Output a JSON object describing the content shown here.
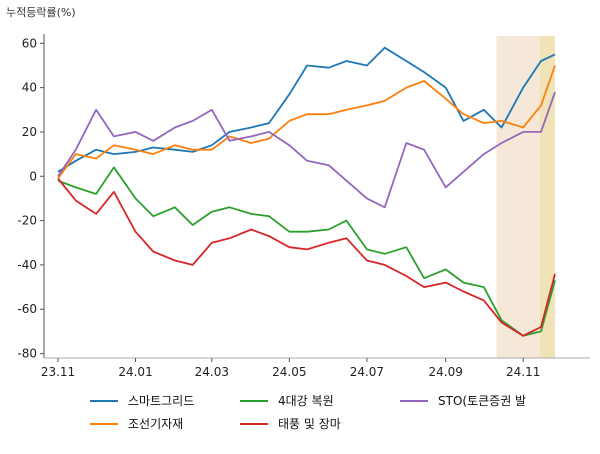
{
  "chart_data": {
    "type": "line",
    "ylabel": "누적등락률(%)",
    "xlabel": "",
    "title": "",
    "ylim": [
      -82,
      66
    ],
    "yticks": [
      60,
      40,
      20,
      0,
      -20,
      -40,
      -60,
      -80
    ],
    "x_ticks": [
      "23.11",
      "24.01",
      "24.03",
      "24.05",
      "24.07",
      "24.09",
      "24.11"
    ],
    "x_range": [
      "2023-11-01",
      "2024-11-26"
    ],
    "grid": false,
    "legend_position": "bottom",
    "highlight_spans": [
      {
        "from": "2024-10-11",
        "to": "2024-11-26",
        "color": "#f5e8d8"
      },
      {
        "from": "2024-11-14",
        "to": "2024-11-26",
        "color": "#f0e3b8"
      }
    ],
    "series": [
      {
        "name": "스마트그리드",
        "color": "#1f77b4",
        "points": [
          [
            "2023-11-01",
            2
          ],
          [
            "2023-11-15",
            7
          ],
          [
            "2023-12-01",
            12
          ],
          [
            "2023-12-15",
            10
          ],
          [
            "2024-01-01",
            11
          ],
          [
            "2024-01-15",
            13
          ],
          [
            "2024-02-01",
            12
          ],
          [
            "2024-02-15",
            11
          ],
          [
            "2024-03-01",
            14
          ],
          [
            "2024-03-15",
            20
          ],
          [
            "2024-04-01",
            22
          ],
          [
            "2024-04-15",
            24
          ],
          [
            "2024-05-01",
            37
          ],
          [
            "2024-05-15",
            50
          ],
          [
            "2024-06-01",
            49
          ],
          [
            "2024-06-15",
            52
          ],
          [
            "2024-07-01",
            50
          ],
          [
            "2024-07-15",
            58
          ],
          [
            "2024-08-01",
            52
          ],
          [
            "2024-08-15",
            47
          ],
          [
            "2024-09-01",
            40
          ],
          [
            "2024-09-15",
            25
          ],
          [
            "2024-10-01",
            30
          ],
          [
            "2024-10-15",
            22
          ],
          [
            "2024-11-01",
            40
          ],
          [
            "2024-11-15",
            52
          ],
          [
            "2024-11-26",
            55
          ]
        ]
      },
      {
        "name": "조선기자재",
        "color": "#ff7f0e",
        "points": [
          [
            "2023-11-01",
            -1
          ],
          [
            "2023-11-15",
            10
          ],
          [
            "2023-12-01",
            8
          ],
          [
            "2023-12-15",
            14
          ],
          [
            "2024-01-01",
            12
          ],
          [
            "2024-01-15",
            10
          ],
          [
            "2024-02-01",
            14
          ],
          [
            "2024-02-15",
            12
          ],
          [
            "2024-03-01",
            12
          ],
          [
            "2024-03-15",
            18
          ],
          [
            "2024-04-01",
            15
          ],
          [
            "2024-04-15",
            17
          ],
          [
            "2024-05-01",
            25
          ],
          [
            "2024-05-15",
            28
          ],
          [
            "2024-06-01",
            28
          ],
          [
            "2024-06-15",
            30
          ],
          [
            "2024-07-01",
            32
          ],
          [
            "2024-07-15",
            34
          ],
          [
            "2024-08-01",
            40
          ],
          [
            "2024-08-15",
            43
          ],
          [
            "2024-09-01",
            35
          ],
          [
            "2024-09-15",
            28
          ],
          [
            "2024-10-01",
            24
          ],
          [
            "2024-10-15",
            25
          ],
          [
            "2024-11-01",
            22
          ],
          [
            "2024-11-15",
            32
          ],
          [
            "2024-11-26",
            50
          ]
        ]
      },
      {
        "name": "4대강 복원",
        "color": "#2ca02c",
        "points": [
          [
            "2023-11-01",
            -2
          ],
          [
            "2023-11-15",
            -5
          ],
          [
            "2023-12-01",
            -8
          ],
          [
            "2023-12-15",
            4
          ],
          [
            "2024-01-01",
            -10
          ],
          [
            "2024-01-15",
            -18
          ],
          [
            "2024-02-01",
            -14
          ],
          [
            "2024-02-15",
            -22
          ],
          [
            "2024-03-01",
            -16
          ],
          [
            "2024-03-15",
            -14
          ],
          [
            "2024-04-01",
            -17
          ],
          [
            "2024-04-15",
            -18
          ],
          [
            "2024-05-01",
            -25
          ],
          [
            "2024-05-15",
            -25
          ],
          [
            "2024-06-01",
            -24
          ],
          [
            "2024-06-15",
            -20
          ],
          [
            "2024-07-01",
            -33
          ],
          [
            "2024-07-15",
            -35
          ],
          [
            "2024-08-01",
            -32
          ],
          [
            "2024-08-15",
            -46
          ],
          [
            "2024-09-01",
            -42
          ],
          [
            "2024-09-15",
            -48
          ],
          [
            "2024-10-01",
            -50
          ],
          [
            "2024-10-15",
            -65
          ],
          [
            "2024-11-01",
            -72
          ],
          [
            "2024-11-15",
            -70
          ],
          [
            "2024-11-26",
            -47
          ]
        ]
      },
      {
        "name": "태풍 및 장마",
        "color": "#d62728",
        "points": [
          [
            "2023-11-01",
            -1
          ],
          [
            "2023-11-15",
            -11
          ],
          [
            "2023-12-01",
            -17
          ],
          [
            "2023-12-15",
            -7
          ],
          [
            "2024-01-01",
            -25
          ],
          [
            "2024-01-15",
            -34
          ],
          [
            "2024-02-01",
            -38
          ],
          [
            "2024-02-15",
            -40
          ],
          [
            "2024-03-01",
            -30
          ],
          [
            "2024-03-15",
            -28
          ],
          [
            "2024-04-01",
            -24
          ],
          [
            "2024-04-15",
            -27
          ],
          [
            "2024-05-01",
            -32
          ],
          [
            "2024-05-15",
            -33
          ],
          [
            "2024-06-01",
            -30
          ],
          [
            "2024-06-15",
            -28
          ],
          [
            "2024-07-01",
            -38
          ],
          [
            "2024-07-15",
            -40
          ],
          [
            "2024-08-01",
            -45
          ],
          [
            "2024-08-15",
            -50
          ],
          [
            "2024-09-01",
            -48
          ],
          [
            "2024-09-15",
            -52
          ],
          [
            "2024-10-01",
            -56
          ],
          [
            "2024-10-15",
            -66
          ],
          [
            "2024-11-01",
            -72
          ],
          [
            "2024-11-15",
            -68
          ],
          [
            "2024-11-26",
            -44
          ]
        ]
      },
      {
        "name": "STO(토큰증권 발",
        "color": "#9467bd",
        "points": [
          [
            "2023-11-01",
            0
          ],
          [
            "2023-11-15",
            12
          ],
          [
            "2023-12-01",
            30
          ],
          [
            "2023-12-15",
            18
          ],
          [
            "2024-01-01",
            20
          ],
          [
            "2024-01-15",
            16
          ],
          [
            "2024-02-01",
            22
          ],
          [
            "2024-02-15",
            25
          ],
          [
            "2024-03-01",
            30
          ],
          [
            "2024-03-15",
            16
          ],
          [
            "2024-04-01",
            18
          ],
          [
            "2024-04-15",
            20
          ],
          [
            "2024-05-01",
            14
          ],
          [
            "2024-05-15",
            7
          ],
          [
            "2024-06-01",
            5
          ],
          [
            "2024-06-15",
            -2
          ],
          [
            "2024-07-01",
            -10
          ],
          [
            "2024-07-15",
            -14
          ],
          [
            "2024-08-01",
            15
          ],
          [
            "2024-08-15",
            12
          ],
          [
            "2024-09-01",
            -5
          ],
          [
            "2024-09-15",
            2
          ],
          [
            "2024-10-01",
            10
          ],
          [
            "2024-10-15",
            15
          ],
          [
            "2024-11-01",
            20
          ],
          [
            "2024-11-15",
            20
          ],
          [
            "2024-11-26",
            38
          ]
        ]
      }
    ]
  }
}
